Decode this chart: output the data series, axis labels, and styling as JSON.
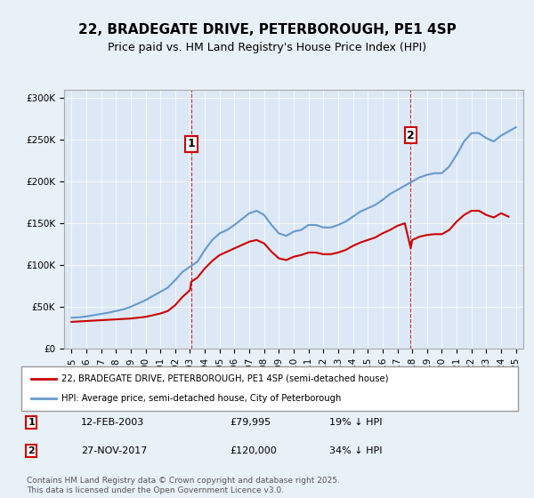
{
  "title": "22, BRADEGATE DRIVE, PETERBOROUGH, PE1 4SP",
  "subtitle": "Price paid vs. HM Land Registry's House Price Index (HPI)",
  "legend_entry1": "22, BRADEGATE DRIVE, PETERBOROUGH, PE1 4SP (semi-detached house)",
  "legend_entry2": "HPI: Average price, semi-detached house, City of Peterborough",
  "annotation1_label": "1",
  "annotation1_date": "12-FEB-2003",
  "annotation1_price": "£79,995",
  "annotation1_hpi": "19% ↓ HPI",
  "annotation1_year": 2003.1,
  "annotation1_value": 79995,
  "annotation2_label": "2",
  "annotation2_date": "27-NOV-2017",
  "annotation2_price": "£120,000",
  "annotation2_hpi": "34% ↓ HPI",
  "annotation2_year": 2017.9,
  "annotation2_value": 120000,
  "ylim": [
    0,
    310000
  ],
  "xlim_start": 1994.5,
  "xlim_end": 2025.5,
  "background_color": "#e8f0f8",
  "plot_bg_color": "#dce8f5",
  "red_color": "#cc0000",
  "blue_color": "#6699cc",
  "footer_text": "Contains HM Land Registry data © Crown copyright and database right 2025.\nThis data is licensed under the Open Government Licence v3.0.",
  "hpi_years": [
    1995,
    1995.5,
    1996,
    1996.5,
    1997,
    1997.5,
    1998,
    1998.5,
    1999,
    1999.5,
    2000,
    2000.5,
    2001,
    2001.5,
    2002,
    2002.5,
    2003,
    2003.5,
    2004,
    2004.5,
    2005,
    2005.5,
    2006,
    2006.5,
    2007,
    2007.5,
    2008,
    2008.5,
    2009,
    2009.5,
    2010,
    2010.5,
    2011,
    2011.5,
    2012,
    2012.5,
    2013,
    2013.5,
    2014,
    2014.5,
    2015,
    2015.5,
    2016,
    2016.5,
    2017,
    2017.5,
    2018,
    2018.5,
    2019,
    2019.5,
    2020,
    2020.5,
    2021,
    2021.5,
    2022,
    2022.5,
    2023,
    2023.5,
    2024,
    2024.5,
    2025
  ],
  "hpi_values": [
    37000,
    37500,
    38500,
    40000,
    41500,
    43000,
    45000,
    47000,
    50000,
    54000,
    58000,
    63000,
    68000,
    73000,
    82000,
    92000,
    98000,
    104000,
    118000,
    130000,
    138000,
    142000,
    148000,
    155000,
    162000,
    165000,
    160000,
    148000,
    138000,
    135000,
    140000,
    142000,
    148000,
    148000,
    145000,
    145000,
    148000,
    152000,
    158000,
    164000,
    168000,
    172000,
    178000,
    185000,
    190000,
    195000,
    200000,
    205000,
    208000,
    210000,
    210000,
    218000,
    232000,
    248000,
    258000,
    258000,
    252000,
    248000,
    255000,
    260000,
    265000
  ],
  "red_years": [
    1995,
    1995.5,
    1996,
    1996.5,
    1997,
    1997.5,
    1998,
    1998.5,
    1999,
    1999.5,
    2000,
    2000.5,
    2001,
    2001.5,
    2002,
    2002.5,
    2003,
    2003.08,
    2003.5,
    2004,
    2004.5,
    2005,
    2005.5,
    2006,
    2006.5,
    2007,
    2007.5,
    2008,
    2008.5,
    2009,
    2009.5,
    2010,
    2010.5,
    2011,
    2011.5,
    2012,
    2012.5,
    2013,
    2013.5,
    2014,
    2014.5,
    2015,
    2015.5,
    2016,
    2016.5,
    2017,
    2017.5,
    2017.9,
    2018,
    2018.5,
    2019,
    2019.5,
    2020,
    2020.5,
    2021,
    2021.5,
    2022,
    2022.5,
    2023,
    2023.5,
    2024,
    2024.5
  ],
  "red_values": [
    32000,
    32500,
    33000,
    33500,
    34000,
    34500,
    35000,
    35500,
    36000,
    37000,
    38000,
    40000,
    42000,
    45000,
    52000,
    62000,
    70000,
    79995,
    85000,
    96000,
    105000,
    112000,
    116000,
    120000,
    124000,
    128000,
    130000,
    126000,
    116000,
    108000,
    106000,
    110000,
    112000,
    115000,
    115000,
    113000,
    113000,
    115000,
    118000,
    123000,
    127000,
    130000,
    133000,
    138000,
    142000,
    147000,
    150000,
    120000,
    130000,
    134000,
    136000,
    137000,
    137000,
    142000,
    152000,
    160000,
    165000,
    165000,
    160000,
    157000,
    162000,
    158000
  ]
}
